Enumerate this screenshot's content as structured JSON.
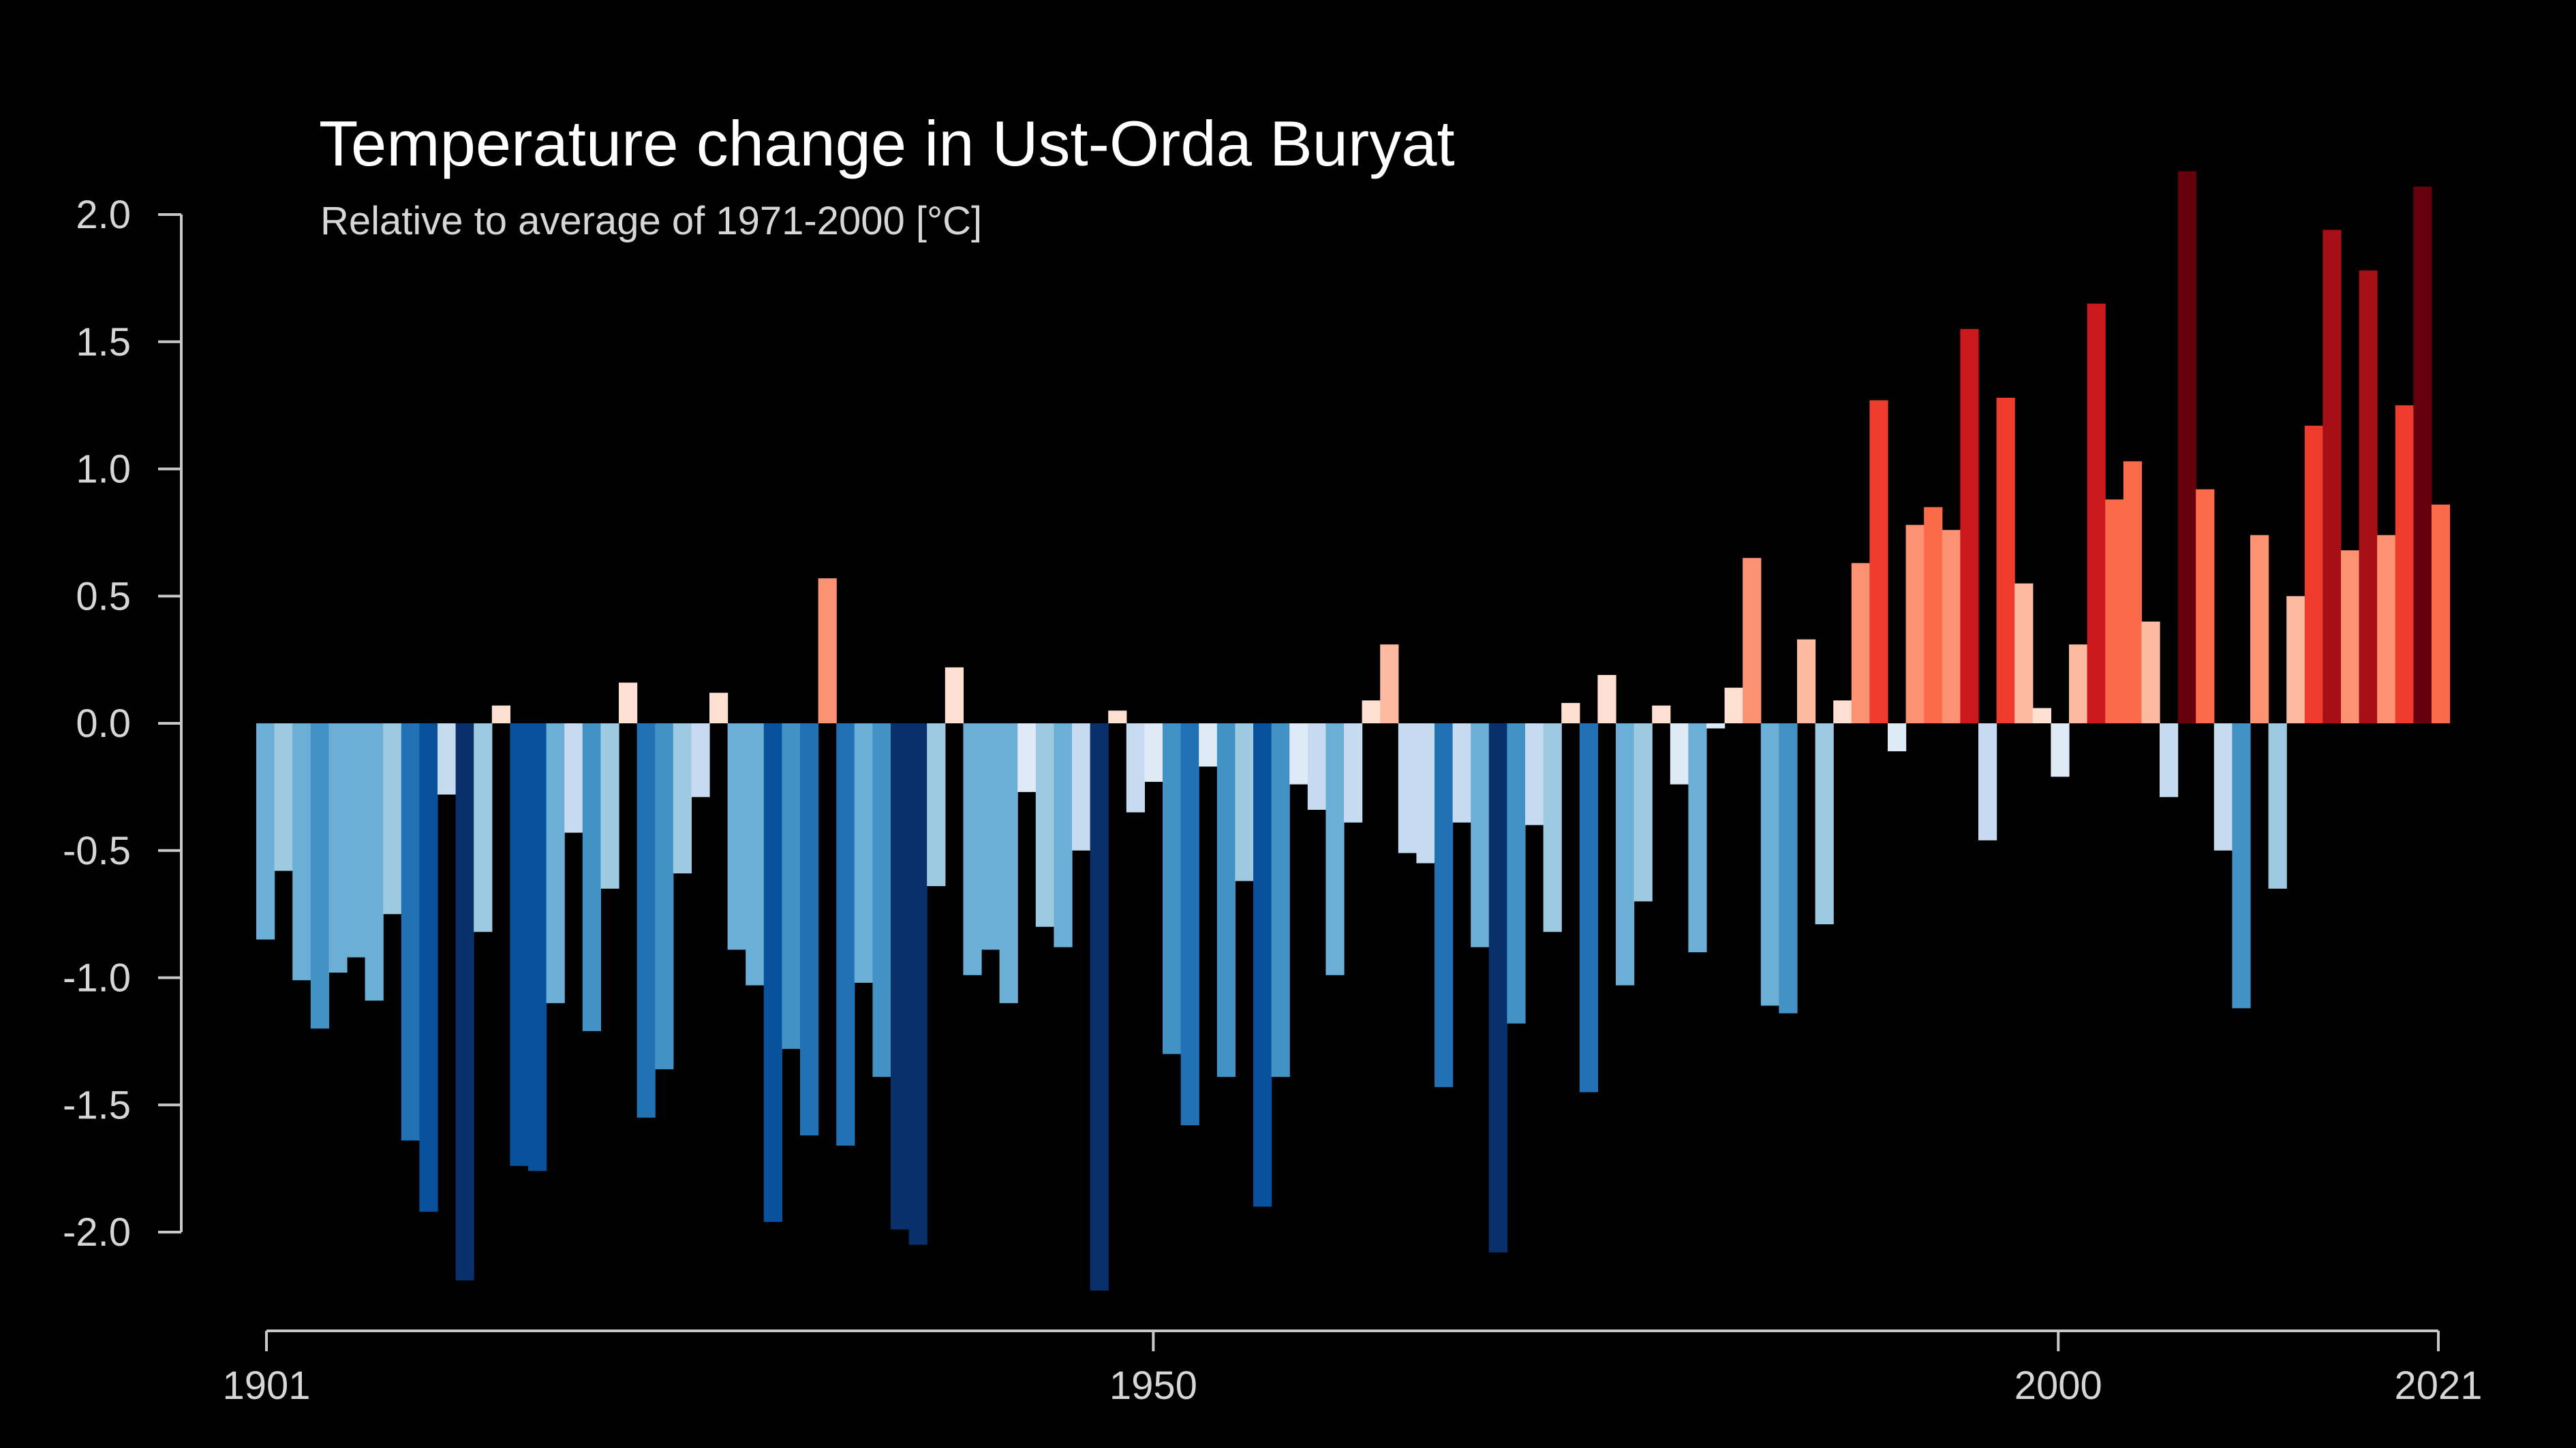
{
  "chart_data": {
    "type": "bar",
    "title": "Temperature change in Ust-Orda Buryat",
    "subtitle": "Relative to average of 1971-2000  [°C]",
    "xlabel": "",
    "ylabel": "",
    "x_start": 1901,
    "x_end": 2021,
    "ylim": [
      -2.2,
      2.2
    ],
    "y_ticks": [
      "2.0",
      "1.5",
      "1.0",
      "0.5",
      "0.0",
      "-0.5",
      "-1.0",
      "-1.5",
      "-2.0"
    ],
    "x_ticks": [
      "1901",
      "1950",
      "2000",
      "2021"
    ],
    "grid": false,
    "color_scale": {
      "negative": [
        "#deebf7",
        "#c6dbef",
        "#9ecae1",
        "#6baed6",
        "#4292c6",
        "#2171b5",
        "#08519c",
        "#08306b"
      ],
      "positive": [
        "#fee0d2",
        "#fcbba1",
        "#fc9272",
        "#fb6a4a",
        "#ef3b2c",
        "#cb181d",
        "#a50f15",
        "#67000d"
      ]
    },
    "categories": [
      1901,
      1902,
      1903,
      1904,
      1905,
      1906,
      1907,
      1908,
      1909,
      1910,
      1911,
      1912,
      1913,
      1914,
      1915,
      1916,
      1917,
      1918,
      1919,
      1920,
      1921,
      1922,
      1923,
      1924,
      1925,
      1926,
      1927,
      1928,
      1929,
      1930,
      1931,
      1932,
      1933,
      1934,
      1935,
      1936,
      1937,
      1938,
      1939,
      1940,
      1941,
      1942,
      1943,
      1944,
      1945,
      1946,
      1947,
      1948,
      1949,
      1950,
      1951,
      1952,
      1953,
      1954,
      1955,
      1956,
      1957,
      1958,
      1959,
      1960,
      1961,
      1962,
      1963,
      1964,
      1965,
      1966,
      1967,
      1968,
      1969,
      1970,
      1971,
      1972,
      1973,
      1974,
      1975,
      1976,
      1977,
      1978,
      1979,
      1980,
      1981,
      1982,
      1983,
      1984,
      1985,
      1986,
      1987,
      1988,
      1989,
      1990,
      1991,
      1992,
      1993,
      1994,
      1995,
      1996,
      1997,
      1998,
      1999,
      2000,
      2001,
      2002,
      2003,
      2004,
      2005,
      2006,
      2007,
      2008,
      2009,
      2010,
      2011,
      2012,
      2013,
      2014,
      2015,
      2016,
      2017,
      2018,
      2019,
      2020,
      2021
    ],
    "values": [
      -0.85,
      -0.58,
      -1.01,
      -1.2,
      -0.98,
      -0.92,
      -1.09,
      -0.75,
      -1.64,
      -1.92,
      -0.28,
      -2.19,
      -0.82,
      0.07,
      -1.74,
      -1.76,
      -1.1,
      -0.43,
      -1.21,
      -0.65,
      0.16,
      -1.55,
      -1.36,
      -0.59,
      -0.29,
      0.12,
      -0.89,
      -1.03,
      -1.96,
      -1.28,
      -1.62,
      0.57,
      -1.66,
      -1.02,
      -1.39,
      -1.99,
      -2.05,
      -0.64,
      0.22,
      -0.99,
      -0.89,
      -1.1,
      -0.27,
      -0.8,
      -0.88,
      -0.5,
      -2.23,
      0.05,
      -0.35,
      -0.23,
      -1.3,
      -1.58,
      -0.17,
      -1.39,
      -0.62,
      -1.9,
      -1.39,
      -0.24,
      -0.34,
      -0.99,
      -0.39,
      0.09,
      0.31,
      -0.51,
      -0.55,
      -1.43,
      -0.39,
      -0.88,
      -2.08,
      -1.18,
      -0.4,
      -0.82,
      0.08,
      -1.45,
      0.19,
      -1.03,
      -0.7,
      0.07,
      -0.24,
      -0.9,
      -0.02,
      0.14,
      0.65,
      -1.11,
      -1.14,
      0.33,
      -0.79,
      0.09,
      0.63,
      1.27,
      -0.11,
      0.78,
      0.85,
      0.76,
      1.55,
      -0.46,
      1.28,
      0.55,
      0.06,
      -0.21,
      0.31,
      1.65,
      0.88,
      1.03,
      0.4,
      -0.29,
      2.17,
      0.92,
      -0.5,
      -1.12,
      0.74,
      -0.65,
      0.5,
      1.17,
      1.94,
      0.68,
      1.78,
      0.74,
      1.25,
      2.11,
      0.86
    ]
  }
}
